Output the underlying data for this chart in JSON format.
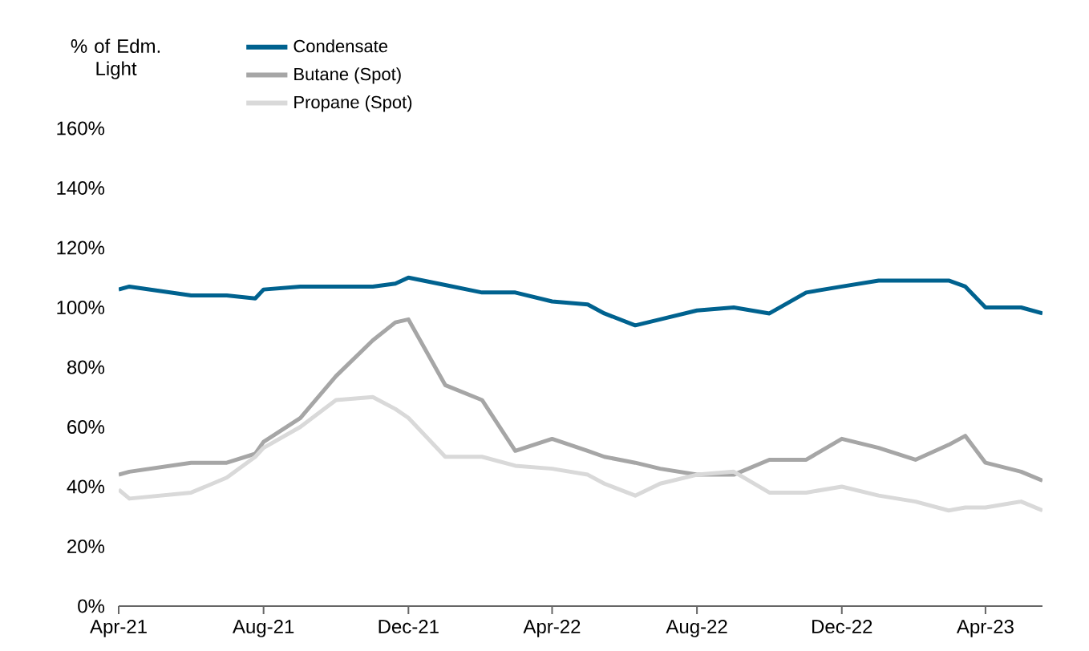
{
  "chart_data": {
    "type": "line",
    "ylabel": "% of Edm. Light",
    "xlim": [
      "2021-04-01",
      "2023-05-19"
    ],
    "xticks": [
      {
        "value": "2021-04-01",
        "label": "Apr-21"
      },
      {
        "value": "2021-08-01",
        "label": "Aug-21"
      },
      {
        "value": "2021-12-01",
        "label": "Dec-21"
      },
      {
        "value": "2022-04-01",
        "label": "Apr-22"
      },
      {
        "value": "2022-08-01",
        "label": "Aug-22"
      },
      {
        "value": "2022-12-01",
        "label": "Dec-22"
      },
      {
        "value": "2023-04-01",
        "label": "Apr-23"
      }
    ],
    "ylim": [
      0,
      160
    ],
    "yticks": [
      {
        "value": 0,
        "label": "0%"
      },
      {
        "value": 20,
        "label": "20%"
      },
      {
        "value": 40,
        "label": "40%"
      },
      {
        "value": 60,
        "label": "60%"
      },
      {
        "value": 80,
        "label": "80%"
      },
      {
        "value": 100,
        "label": "100%"
      },
      {
        "value": 120,
        "label": "120%"
      },
      {
        "value": 140,
        "label": "140%"
      },
      {
        "value": 160,
        "label": "160%"
      }
    ],
    "grid": false,
    "legend": "top left",
    "marker": "none",
    "line_style": "solid",
    "x": [
      "2021-04-01",
      "2021-04-10",
      "2021-06-01",
      "2021-07-01",
      "2021-07-25",
      "2021-08-01",
      "2021-09-01",
      "2021-10-01",
      "2021-11-01",
      "2021-11-20",
      "2021-12-01",
      "2022-01-01",
      "2022-02-01",
      "2022-03-01",
      "2022-04-01",
      "2022-05-01",
      "2022-05-15",
      "2022-06-10",
      "2022-07-01",
      "2022-08-01",
      "2022-09-01",
      "2022-10-01",
      "2022-11-01",
      "2022-12-01",
      "2023-01-01",
      "2023-02-01",
      "2023-03-01",
      "2023-03-15",
      "2023-04-01",
      "2023-05-01",
      "2023-05-19"
    ],
    "series": [
      {
        "name": "Condensate",
        "color": "#00628f",
        "values": [
          106,
          107,
          104,
          104,
          103,
          106,
          107,
          107,
          107,
          108,
          110,
          107.5,
          105,
          105,
          102,
          101,
          98,
          94,
          96,
          99,
          100,
          98,
          105,
          107,
          109,
          109,
          109,
          107,
          100,
          100,
          98
        ]
      },
      {
        "name": "Butane (Spot)",
        "color": "#a6a6a6",
        "values": [
          44,
          45,
          48,
          48,
          51,
          55,
          63,
          77,
          89,
          95,
          96,
          74,
          69,
          52,
          56,
          52,
          50,
          48,
          46,
          44,
          44,
          49,
          49,
          56,
          53,
          49,
          54,
          57,
          48,
          45,
          42
        ]
      },
      {
        "name": "Propane (Spot)",
        "color": "#d9d9d9",
        "values": [
          39,
          36,
          38,
          43,
          50,
          53,
          60,
          69,
          70,
          66,
          63,
          50,
          50,
          47,
          46,
          44,
          41,
          37,
          41,
          44,
          45,
          38,
          38,
          40,
          37,
          35,
          32,
          33,
          33,
          35,
          32
        ]
      }
    ]
  }
}
